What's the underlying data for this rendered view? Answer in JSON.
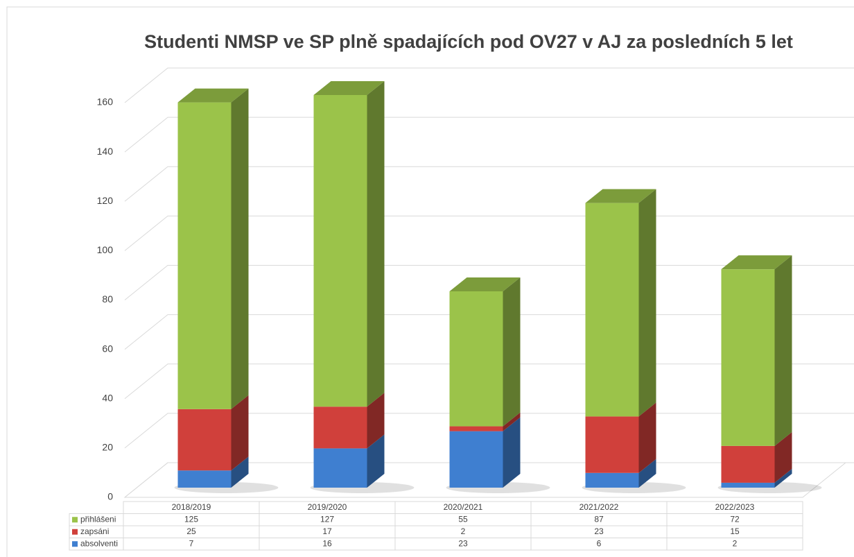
{
  "chart_data": {
    "type": "bar3d_stacked",
    "title": "Studenti NMSP ve SP plně spadajících pod OV27 v AJ za posledních 5 let",
    "categories": [
      "2018/2019",
      "2019/2020",
      "2020/2021",
      "2021/2022",
      "2022/2023"
    ],
    "series": [
      {
        "name": "přihlášeni",
        "color": "#9bc34a",
        "values": [
          125,
          127,
          55,
          87,
          72
        ]
      },
      {
        "name": "zapsáni",
        "color": "#d0403b",
        "values": [
          25,
          17,
          2,
          23,
          15
        ]
      },
      {
        "name": "absolventi",
        "color": "#3f7fd0",
        "values": [
          7,
          16,
          23,
          6,
          2
        ]
      }
    ],
    "ylim": [
      0,
      160
    ],
    "yticks": [
      0,
      20,
      40,
      60,
      80,
      100,
      120,
      140,
      160
    ],
    "grid": true
  }
}
